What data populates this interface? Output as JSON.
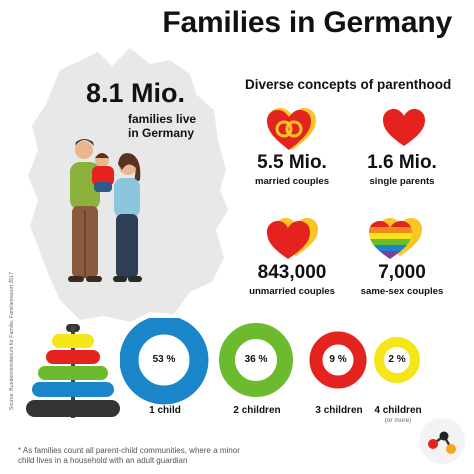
{
  "title": "Families in Germany",
  "families": {
    "value": "8.1 Mio.",
    "line1": "families live",
    "line2": "in Germany"
  },
  "parenthood": {
    "heading": "Diverse concepts of parenthood",
    "items": [
      {
        "value": "5.5 Mio.",
        "label": "married couples",
        "icon": "rings-heart-icon"
      },
      {
        "value": "1.6 Mio.",
        "label": "single parents",
        "icon": "heart-icon"
      },
      {
        "value": "843,000",
        "label": "unmarried couples",
        "icon": "double-heart-icon"
      },
      {
        "value": "7,000",
        "label": "same-sex couples",
        "icon": "rainbow-heart-icon"
      }
    ]
  },
  "children": [
    {
      "pct": "53 %",
      "label": "1 child",
      "color": "#1a86c9",
      "fraction": 0.53
    },
    {
      "pct": "36 %",
      "label": "2 children",
      "color": "#6cbb2e",
      "fraction": 0.36
    },
    {
      "pct": "9 %",
      "label": "3 children",
      "color": "#e5231e",
      "fraction": 0.09
    },
    {
      "pct": "2 %",
      "label": "4 children",
      "sub": "(or more)",
      "color": "#f5e619",
      "fraction": 0.02
    }
  ],
  "source": "Source: Bundesministerium für Familie, Familienreport 2017",
  "footnote": {
    "line1": "* As families count all parent-child communities, where a minor",
    "line2": "child lives in a household with an adult guardian"
  },
  "colors": {
    "red": "#e5231e",
    "yellow": "#f9c623",
    "blue": "#1a86c9",
    "green": "#6cbb2e",
    "dark": "#333333"
  }
}
